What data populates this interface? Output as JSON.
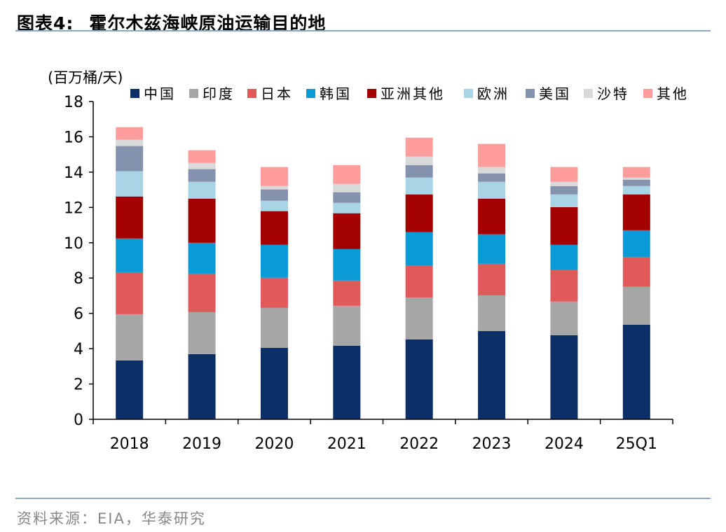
{
  "header": {
    "figure_label": "图表4:",
    "title": "霍尔木兹海峡原油运输目的地"
  },
  "footer": {
    "source": "资料来源：EIA，华泰研究"
  },
  "chart_data": {
    "type": "bar",
    "stacked": true,
    "title": "霍尔木兹海峡原油运输目的地",
    "ylabel": "(百万桶/天)",
    "xlabel": "",
    "ylim": [
      0,
      18
    ],
    "yticks": [
      0,
      2,
      4,
      6,
      8,
      10,
      12,
      14,
      16,
      18
    ],
    "grid": false,
    "legend_position": "top",
    "categories": [
      "2018",
      "2019",
      "2020",
      "2021",
      "2022",
      "2023",
      "2024",
      "25Q1"
    ],
    "series": [
      {
        "name": "中国",
        "color": "#0b2f66",
        "values": [
          3.33,
          3.69,
          4.05,
          4.17,
          4.52,
          5.0,
          4.76,
          5.36
        ]
      },
      {
        "name": "印度",
        "color": "#a6a6a6",
        "values": [
          2.62,
          2.38,
          2.26,
          2.26,
          2.38,
          2.02,
          1.91,
          2.14
        ]
      },
      {
        "name": "日本",
        "color": "#e05a5c",
        "values": [
          2.38,
          2.18,
          1.71,
          1.43,
          1.79,
          1.79,
          1.78,
          1.67
        ]
      },
      {
        "name": "韩国",
        "color": "#0a9bd6",
        "values": [
          1.91,
          1.75,
          1.86,
          1.78,
          1.91,
          1.67,
          1.43,
          1.54
        ]
      },
      {
        "name": "亚洲其他",
        "color": "#a30000",
        "values": [
          2.38,
          2.5,
          1.91,
          2.03,
          2.14,
          2.02,
          2.14,
          2.03
        ]
      },
      {
        "name": "欧洲",
        "color": "#a9d4e5",
        "values": [
          1.43,
          0.95,
          0.59,
          0.59,
          0.95,
          0.95,
          0.72,
          0.47
        ]
      },
      {
        "name": "美国",
        "color": "#8592ad",
        "values": [
          1.43,
          0.72,
          0.64,
          0.6,
          0.71,
          0.48,
          0.47,
          0.36
        ]
      },
      {
        "name": "沙特",
        "color": "#d9d9d9",
        "values": [
          0.35,
          0.35,
          0.19,
          0.47,
          0.48,
          0.36,
          0.24,
          0.12
        ]
      },
      {
        "name": "其他",
        "color": "#ff9d9d",
        "values": [
          0.72,
          0.72,
          1.08,
          1.07,
          1.07,
          1.31,
          0.84,
          0.6
        ]
      }
    ]
  }
}
